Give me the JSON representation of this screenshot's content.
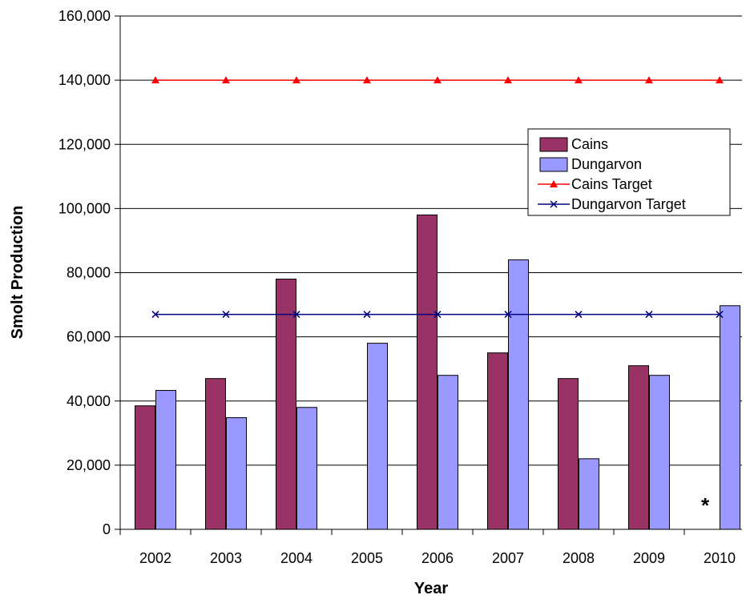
{
  "colors": {
    "cains": "#993366",
    "dungarvon": "#9999ff",
    "cains_target": "#ff0000",
    "dungarvon_target": "#000080",
    "gridline": "#000000"
  },
  "chart_data": {
    "type": "bar",
    "title": "",
    "xlabel": "Year",
    "ylabel": "Smolt Production",
    "categories": [
      "2002",
      "2003",
      "2004",
      "2005",
      "2006",
      "2007",
      "2008",
      "2009",
      "2010"
    ],
    "ylim": [
      0,
      160000
    ],
    "y_ticks": [
      0,
      20000,
      40000,
      60000,
      80000,
      100000,
      120000,
      140000,
      160000
    ],
    "y_tick_labels": [
      "0",
      "20,000",
      "40,000",
      "60,000",
      "80,000",
      "100,000",
      "120,000",
      "140,000",
      "160,000"
    ],
    "grid": true,
    "legend_position": "right",
    "series": [
      {
        "name": "Cains",
        "kind": "bar",
        "values": [
          38500,
          47000,
          78000,
          null,
          98000,
          55000,
          47000,
          51000,
          null
        ]
      },
      {
        "name": "Dungarvon",
        "kind": "bar",
        "values": [
          43300,
          34800,
          38000,
          58000,
          48000,
          84000,
          22000,
          48000,
          69700
        ]
      },
      {
        "name": "Cains Target",
        "kind": "line",
        "marker": "triangle",
        "values": [
          140000,
          140000,
          140000,
          140000,
          140000,
          140000,
          140000,
          140000,
          140000
        ]
      },
      {
        "name": "Dungarvon Target",
        "kind": "line",
        "marker": "x",
        "values": [
          67000,
          67000,
          67000,
          67000,
          67000,
          67000,
          67000,
          67000,
          67000
        ]
      }
    ],
    "annotations": [
      {
        "text": "*",
        "category": "2010"
      }
    ]
  }
}
